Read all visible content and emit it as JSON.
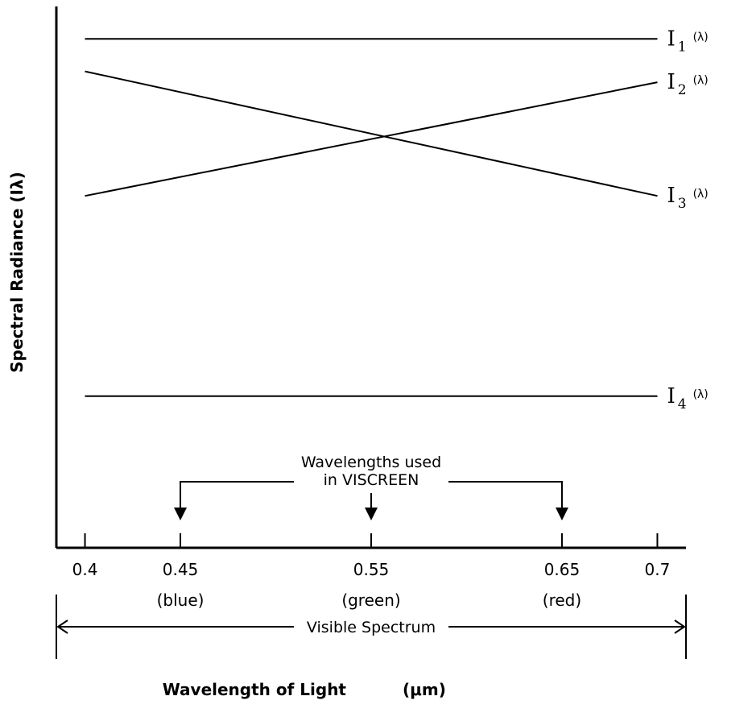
{
  "chart_data": {
    "type": "line",
    "xlabel": "Wavelength of Light",
    "xunit": "(μm)",
    "ylabel": "Spectral Radiance (Iλ)",
    "xlim": [
      0.385,
      0.715
    ],
    "ylim": [
      0,
      100
    ],
    "xticks": [
      {
        "value": 0.4,
        "label": "0.4",
        "band": ""
      },
      {
        "value": 0.45,
        "label": "0.45",
        "band": "(blue)"
      },
      {
        "value": 0.55,
        "label": "0.55",
        "band": "(green)"
      },
      {
        "value": 0.65,
        "label": "0.65",
        "band": "(red)"
      },
      {
        "value": 0.7,
        "label": "0.7",
        "band": ""
      }
    ],
    "series": [
      {
        "name": "I",
        "subscript": "1",
        "suffix": "(λ)",
        "x": [
          0.4,
          0.7
        ],
        "values": [
          94,
          94
        ]
      },
      {
        "name": "I",
        "subscript": "2",
        "suffix": "(λ)",
        "x": [
          0.4,
          0.7
        ],
        "values": [
          65,
          86
        ]
      },
      {
        "name": "I",
        "subscript": "3",
        "suffix": "(λ)",
        "x": [
          0.4,
          0.7
        ],
        "values": [
          88,
          65
        ]
      },
      {
        "name": "I",
        "subscript": "4",
        "suffix": "(λ)",
        "x": [
          0.4,
          0.7
        ],
        "values": [
          28,
          28
        ]
      }
    ],
    "annotations": {
      "viscreen_label_line1": "Wavelengths used",
      "viscreen_label_line2": "in VISCREEN",
      "viscreen_wavelengths": [
        0.45,
        0.55,
        0.65
      ],
      "visible_spectrum_label": "Visible Spectrum",
      "visible_spectrum_range": [
        0.385,
        0.715
      ]
    },
    "grid": false,
    "legend": "none"
  }
}
